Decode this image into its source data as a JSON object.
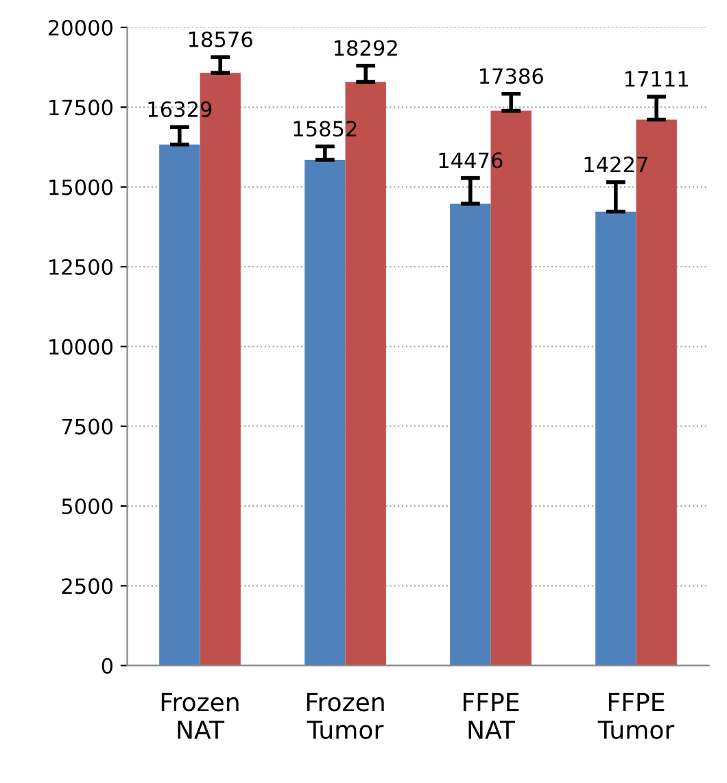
{
  "chart_data": {
    "type": "bar",
    "categories": [
      "Frozen\nNAT",
      "Frozen\nTumor",
      "FFPE\nNAT",
      "FFPE\nTumor"
    ],
    "series": [
      {
        "color": "#4f81bd",
        "values": [
          16329,
          15852,
          14476,
          14227
        ],
        "errors": [
          [
            16329,
            16880
          ],
          [
            15852,
            16270
          ],
          [
            14476,
            15280
          ],
          [
            14227,
            15150
          ]
        ]
      },
      {
        "color": "#c0504d",
        "values": [
          18576,
          18292,
          17386,
          17111
        ],
        "errors": [
          [
            18576,
            19070
          ],
          [
            18292,
            18800
          ],
          [
            17386,
            17920
          ],
          [
            17111,
            17830
          ]
        ]
      }
    ],
    "ylim": [
      0,
      20000
    ],
    "yticks": [
      0,
      2500,
      5000,
      7500,
      10000,
      12500,
      15000,
      17500,
      20000
    ],
    "grid": "y",
    "data_labels": true
  }
}
